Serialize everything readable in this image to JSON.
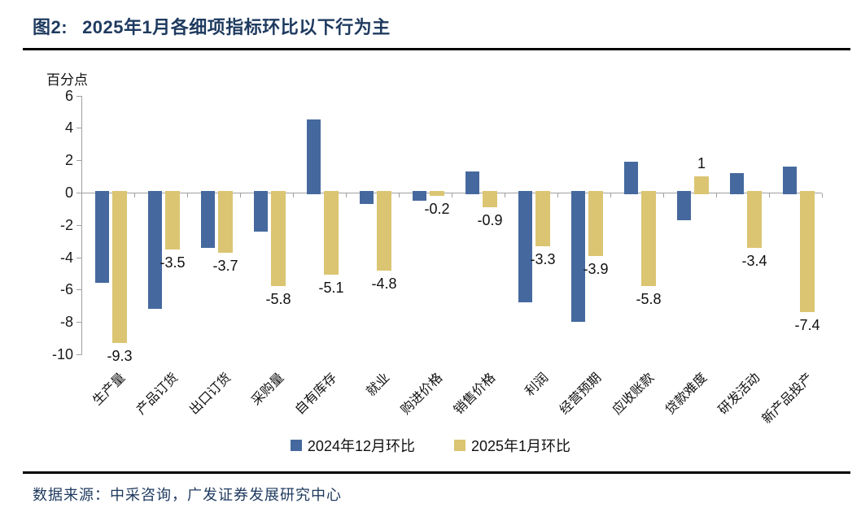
{
  "figure": {
    "title_prefix": "图2:",
    "title": "2025年1月各细项指标环比以下行为主",
    "unit_label": "百分点",
    "source": "数据来源：中采咨询，广发证券发展研究中心"
  },
  "colors": {
    "series_dec": "#45699E",
    "series_jan": "#DBC572",
    "axis": "#a0a0a0",
    "title_navy": "#1E3A5F",
    "rule_black": "#000000"
  },
  "chart_data": {
    "type": "bar",
    "title": "2025年1月各细项指标环比以下行为主",
    "xlabel": "",
    "ylabel": "百分点",
    "ylim": [
      -10,
      6
    ],
    "ytick_interval": 2,
    "yticks": [
      6,
      4,
      2,
      0,
      -2,
      -4,
      -6,
      -8,
      -10
    ],
    "grid": false,
    "legend_position": "bottom",
    "categories": [
      "生产量",
      "产品订货",
      "出口订货",
      "采购量",
      "自有库存",
      "就业",
      "购进价格",
      "销售价格",
      "利润",
      "经营预期",
      "应收账款",
      "贷款难度",
      "研发活动",
      "新产品投产"
    ],
    "series": [
      {
        "name": "2024年12月环比",
        "color": "#45699E",
        "values": [
          -5.6,
          -7.2,
          -3.4,
          -2.4,
          4.5,
          -0.7,
          -0.5,
          1.3,
          -6.8,
          -8.0,
          1.9,
          -1.7,
          1.2,
          1.6
        ],
        "labels_shown": false
      },
      {
        "name": "2025年1月环比",
        "color": "#DBC572",
        "values": [
          -9.3,
          -3.5,
          -3.7,
          -5.8,
          -5.1,
          -4.8,
          -0.2,
          -0.9,
          -3.3,
          -3.9,
          -5.8,
          1,
          -3.4,
          -7.4
        ],
        "labels_shown": true,
        "labels": [
          "-9.3",
          "-3.5",
          "-3.7",
          "-5.8",
          "-5.1",
          "-4.8",
          "-0.2",
          "-0.9",
          "-3.3",
          "-3.9",
          "-5.8",
          "1",
          "-3.4",
          "-7.4"
        ]
      }
    ]
  }
}
